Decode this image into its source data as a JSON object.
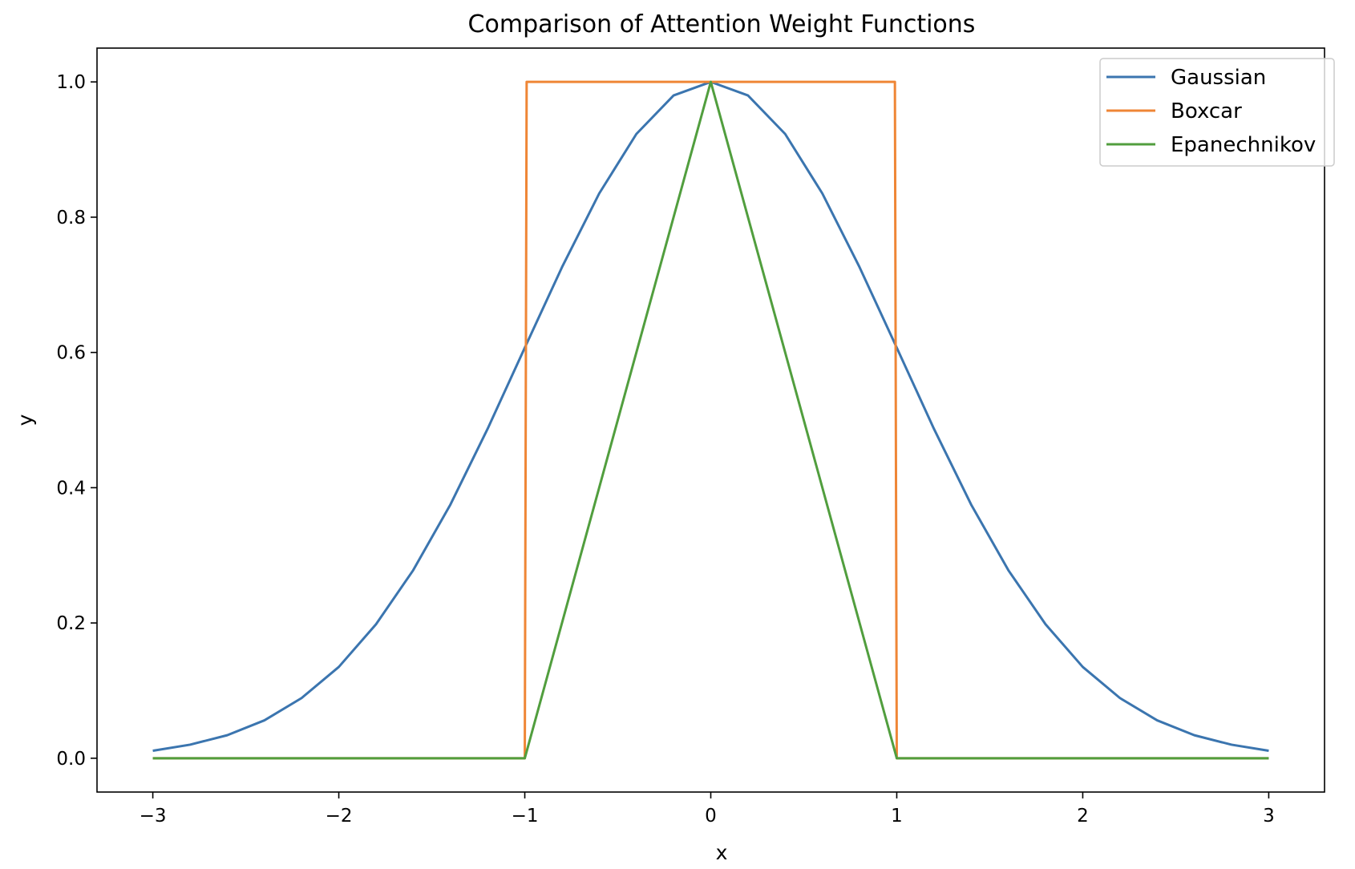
{
  "chart_data": {
    "type": "line",
    "title": "Comparison of Attention Weight Functions",
    "xlabel": "x",
    "ylabel": "y",
    "xlim": [
      -3.3,
      3.3
    ],
    "ylim": [
      -0.05,
      1.05
    ],
    "xticks": [
      -3,
      -2,
      -1,
      0,
      1,
      2,
      3
    ],
    "xtick_labels": [
      "−3",
      "−2",
      "−1",
      "0",
      "1",
      "2",
      "3"
    ],
    "yticks": [
      0.0,
      0.2,
      0.4,
      0.6,
      0.8,
      1.0
    ],
    "ytick_labels": [
      "0.0",
      "0.2",
      "0.4",
      "0.6",
      "0.8",
      "1.0"
    ],
    "grid": false,
    "legend_position": "top-right",
    "series": [
      {
        "name": "Gaussian",
        "color": "#3b75af",
        "x": [
          -3.0,
          -2.8,
          -2.6,
          -2.4,
          -2.2,
          -2.0,
          -1.8,
          -1.6,
          -1.4,
          -1.2,
          -1.0,
          -0.8,
          -0.6,
          -0.4,
          -0.2,
          0.0,
          0.2,
          0.4,
          0.6,
          0.8,
          1.0,
          1.2,
          1.4,
          1.6,
          1.8,
          2.0,
          2.2,
          2.4,
          2.6,
          2.8,
          3.0
        ],
        "y": [
          0.011,
          0.02,
          0.034,
          0.056,
          0.089,
          0.135,
          0.198,
          0.278,
          0.375,
          0.487,
          0.607,
          0.726,
          0.835,
          0.923,
          0.98,
          1.0,
          0.98,
          0.923,
          0.835,
          0.726,
          0.607,
          0.487,
          0.375,
          0.278,
          0.198,
          0.135,
          0.089,
          0.056,
          0.034,
          0.02,
          0.011
        ]
      },
      {
        "name": "Boxcar",
        "color": "#ef8636",
        "x": [
          -3.0,
          -1.0,
          -0.99,
          0.99,
          1.0,
          3.0
        ],
        "y": [
          0.0,
          0.0,
          1.0,
          1.0,
          0.0,
          0.0
        ]
      },
      {
        "name": "Epanechnikov",
        "color": "#519e3e",
        "x": [
          -3.0,
          -1.0,
          0.0,
          1.0,
          3.0
        ],
        "y": [
          0.0,
          0.0,
          1.0,
          0.0,
          0.0
        ]
      }
    ]
  }
}
